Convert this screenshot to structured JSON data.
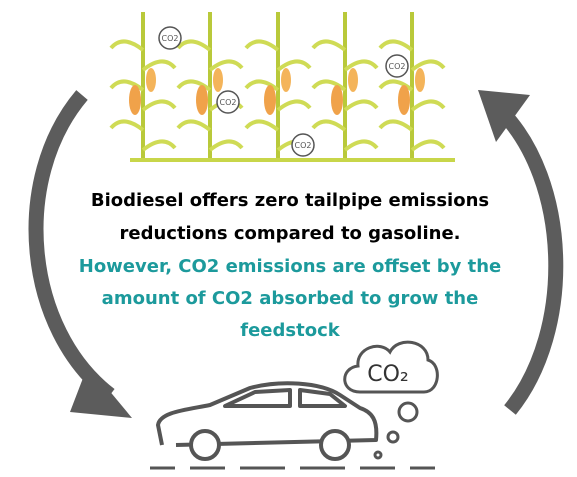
{
  "text": {
    "main": [
      "Biodiesel offers zero tailpipe emissions",
      "reductions compared to gasoline."
    ],
    "highlight": [
      "However, CO2 emissions are offset by the",
      "amount of CO2 absorbed to grow the",
      "feedstock"
    ]
  },
  "bubbles": [
    "CO2",
    "CO2",
    "CO2",
    "CO2"
  ],
  "cloud": "CO₂"
}
